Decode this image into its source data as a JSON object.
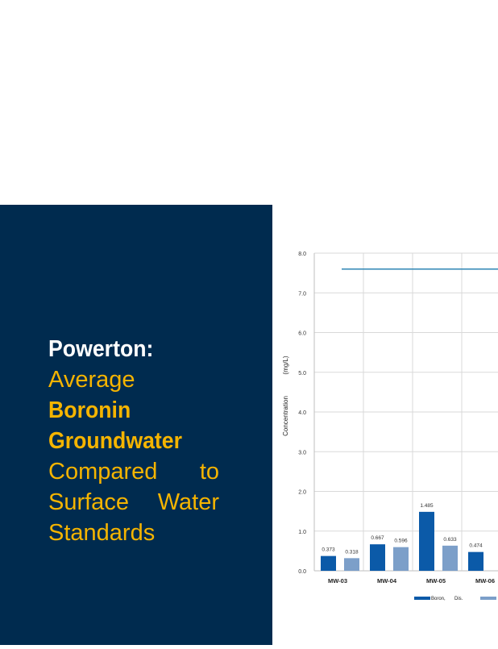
{
  "title": {
    "line1": "Powerton:",
    "line2": "Average",
    "line3": "Boronin",
    "line4": "Groundwater",
    "line5_a": "Compared",
    "line5_b": "to",
    "line6_a": "Surface",
    "line6_b": "Water",
    "line7": "Standards"
  },
  "colors": {
    "panel": "#002b4f",
    "accent": "#f5b400",
    "boron_total": "#0b5aa8",
    "boron_dissolved": "#7c9fc9",
    "standard_line": "#2e86b4"
  },
  "chart_data": {
    "type": "bar",
    "ylabel": "Concentration (mg/L)",
    "ylabel_parts": [
      "Concentration",
      "(mg/L)"
    ],
    "ylim": [
      0,
      8
    ],
    "yticks": [
      "0.0",
      "1.0",
      "2.0",
      "3.0",
      "4.0",
      "5.0",
      "6.0",
      "7.0",
      "8.0"
    ],
    "grid": true,
    "categories": [
      "MW-03",
      "MW-04",
      "MW-05",
      "MW-06"
    ],
    "series": [
      {
        "name": "Boron,",
        "values": [
          0.373,
          0.667,
          1.485,
          0.474
        ],
        "labels": [
          "0.373",
          "0.667",
          "1.485",
          "0.474"
        ]
      },
      {
        "name": "Dis.",
        "values": [
          0.318,
          0.596,
          0.633,
          null
        ],
        "labels": [
          "0.318",
          "0.596",
          "0.633",
          ""
        ]
      }
    ],
    "reference_line": {
      "value": 7.6
    },
    "legend": {
      "position": "bottom",
      "entries": [
        "Boron,",
        "Dis."
      ]
    }
  }
}
